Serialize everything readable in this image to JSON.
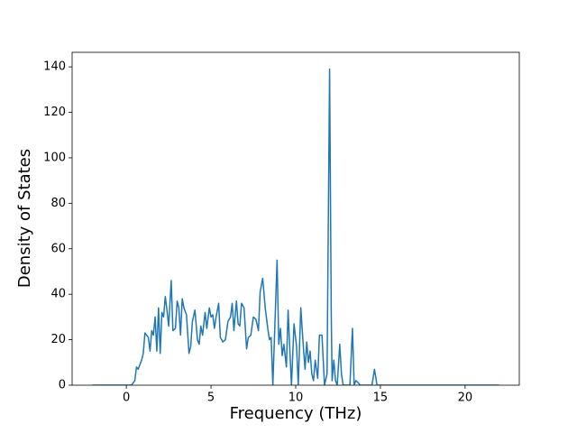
{
  "chart_data": {
    "type": "line",
    "xlabel": "Frequency (THz)",
    "ylabel": "Density of States",
    "color": "#1f77b4",
    "x": [
      -2,
      0,
      0.3,
      0.5,
      0.6,
      0.7,
      0.9,
      1.0,
      1.1,
      1.3,
      1.4,
      1.5,
      1.6,
      1.7,
      1.8,
      1.9,
      2.0,
      2.1,
      2.2,
      2.3,
      2.4,
      2.5,
      2.65,
      2.75,
      2.9,
      3.0,
      3.1,
      3.2,
      3.3,
      3.4,
      3.55,
      3.7,
      3.8,
      3.9,
      4.05,
      4.2,
      4.3,
      4.4,
      4.5,
      4.65,
      4.75,
      4.9,
      5.0,
      5.1,
      5.2,
      5.3,
      5.45,
      5.55,
      5.7,
      5.85,
      6.0,
      6.15,
      6.25,
      6.35,
      6.5,
      6.6,
      6.7,
      6.8,
      6.95,
      7.1,
      7.2,
      7.35,
      7.5,
      7.65,
      7.8,
      7.9,
      8.05,
      8.2,
      8.35,
      8.45,
      8.55,
      8.65,
      8.75,
      8.9,
      9.0,
      9.1,
      9.2,
      9.3,
      9.45,
      9.55,
      9.65,
      9.75,
      9.9,
      10.05,
      10.15,
      10.3,
      10.45,
      10.55,
      10.65,
      10.75,
      10.85,
      10.95,
      11.05,
      11.15,
      11.3,
      11.4,
      11.55,
      11.7,
      11.85,
      12.0,
      12.1,
      12.15,
      12.25,
      12.35,
      12.45,
      12.6,
      12.7,
      12.8,
      13.2,
      13.35,
      13.45,
      13.55,
      13.7,
      13.8,
      14.5,
      14.65,
      14.8,
      22
    ],
    "values": [
      0,
      0,
      0,
      2,
      8,
      7,
      11,
      14,
      23,
      21,
      15,
      24,
      22,
      30,
      15,
      34,
      14,
      32,
      30,
      39,
      33,
      26,
      46,
      24,
      25,
      37,
      34,
      22,
      38,
      34,
      31,
      14,
      17,
      28,
      33,
      20,
      18,
      26,
      22,
      32,
      25,
      34,
      30,
      31,
      25,
      30,
      36,
      21,
      19,
      20,
      28,
      30,
      36,
      24,
      37,
      27,
      26,
      36,
      34,
      16,
      21,
      22,
      30,
      29,
      24,
      41,
      47,
      34,
      25,
      20,
      21,
      0,
      22,
      55,
      18,
      25,
      13,
      18,
      8,
      33,
      16,
      0,
      27,
      17,
      0,
      34,
      17,
      7,
      19,
      10,
      15,
      5,
      2,
      11,
      3,
      22,
      22,
      0,
      5,
      139,
      30,
      2,
      11,
      2,
      0,
      18,
      5,
      0,
      0,
      25,
      0,
      2,
      1,
      0,
      0,
      7,
      0,
      0
    ],
    "xlim": [
      -3.2,
      23.2
    ],
    "ylim": [
      0,
      146.4
    ],
    "xticks": [
      0,
      5,
      10,
      15,
      20
    ],
    "yticks": [
      0,
      20,
      40,
      60,
      80,
      100,
      120,
      140
    ]
  }
}
